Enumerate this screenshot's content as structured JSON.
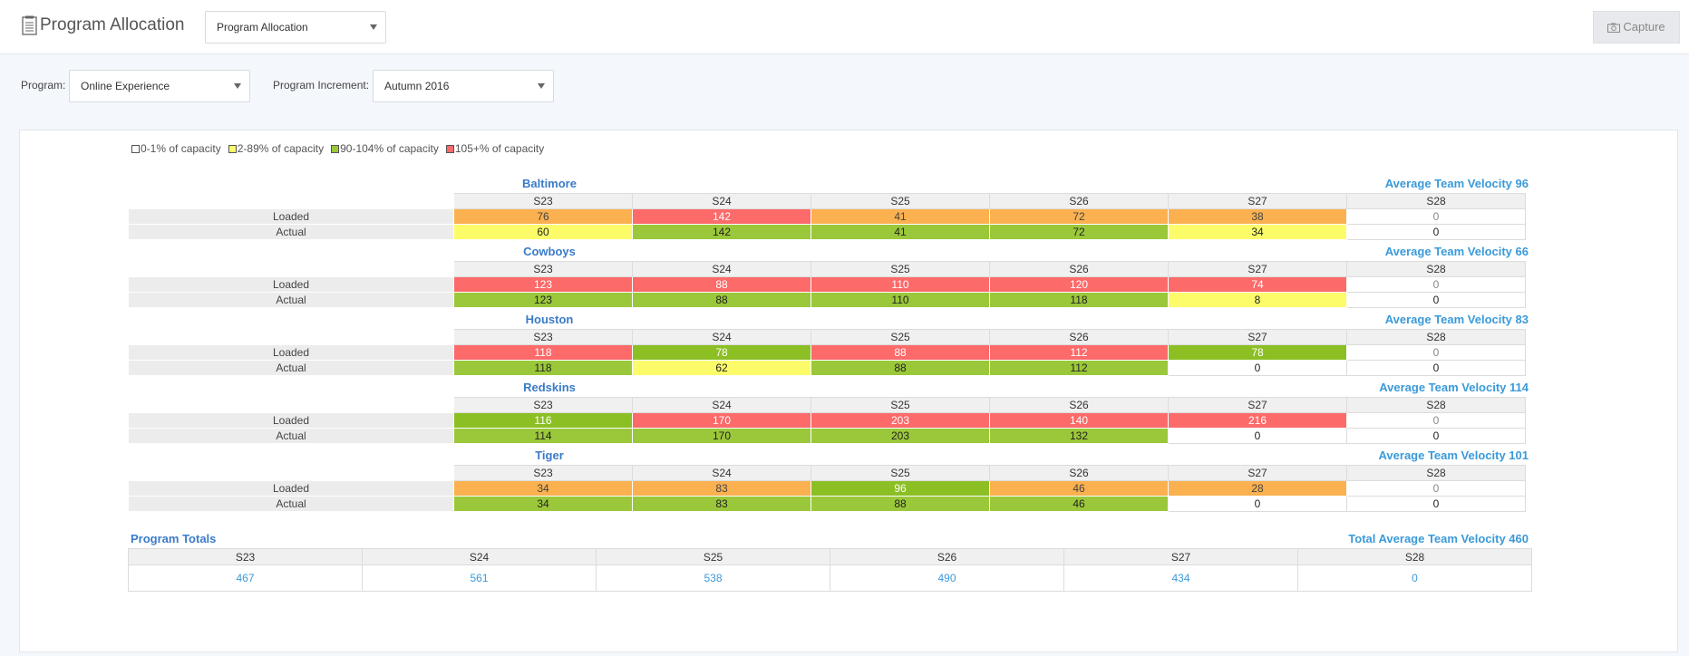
{
  "header": {
    "title": "Program Allocation",
    "view_select": "Program Allocation",
    "capture_label": "Capture"
  },
  "filters": {
    "program_label": "Program:",
    "program_value": "Online Experience",
    "increment_label": "Program Increment:",
    "increment_value": "Autumn 2016"
  },
  "legend": [
    {
      "label": "0-1% of capacity",
      "color": "#ffffff"
    },
    {
      "label": "2-89% of capacity",
      "color": "#fcfc6a"
    },
    {
      "label": "90-104% of capacity",
      "color": "#9bc83a"
    },
    {
      "label": "105+% of capacity",
      "color": "#fc6a6a"
    }
  ],
  "sprints": [
    "S23",
    "S24",
    "S25",
    "S26",
    "S27",
    "S28"
  ],
  "row_labels": {
    "loaded": "Loaded",
    "actual": "Actual"
  },
  "teams": [
    {
      "name": "Baltimore",
      "velocity": "Average Team Velocity 96",
      "loaded": [
        "76",
        "142",
        "41",
        "72",
        "38",
        "0"
      ],
      "loaded_status": [
        "orange",
        "red",
        "orange",
        "orange",
        "orange",
        "white"
      ],
      "actual": [
        "60",
        "142",
        "41",
        "72",
        "34",
        "0"
      ],
      "actual_status": [
        "yellow",
        "green",
        "green",
        "green",
        "yellow",
        "white-b"
      ]
    },
    {
      "name": "Cowboys",
      "velocity": "Average Team Velocity 66",
      "loaded": [
        "123",
        "88",
        "110",
        "120",
        "74",
        "0"
      ],
      "loaded_status": [
        "red",
        "red",
        "red",
        "red",
        "red",
        "white"
      ],
      "actual": [
        "123",
        "88",
        "110",
        "118",
        "8",
        "0"
      ],
      "actual_status": [
        "green",
        "green",
        "green",
        "green",
        "yellow",
        "white-b"
      ]
    },
    {
      "name": "Houston",
      "velocity": "Average Team Velocity 83",
      "loaded": [
        "118",
        "78",
        "88",
        "112",
        "78",
        "0"
      ],
      "loaded_status": [
        "red",
        "dgreen",
        "red",
        "red",
        "dgreen",
        "white"
      ],
      "actual": [
        "118",
        "62",
        "88",
        "112",
        "0",
        "0"
      ],
      "actual_status": [
        "green",
        "yellow",
        "green",
        "green",
        "white-b",
        "white-b"
      ]
    },
    {
      "name": "Redskins",
      "velocity": "Average Team Velocity 114",
      "loaded": [
        "116",
        "170",
        "203",
        "140",
        "216",
        "0"
      ],
      "loaded_status": [
        "dgreen",
        "red",
        "red",
        "red",
        "red",
        "white"
      ],
      "actual": [
        "114",
        "170",
        "203",
        "132",
        "0",
        "0"
      ],
      "actual_status": [
        "green",
        "green",
        "green",
        "green",
        "white-b",
        "white-b"
      ]
    },
    {
      "name": "Tiger",
      "velocity": "Average Team Velocity 101",
      "loaded": [
        "34",
        "83",
        "96",
        "46",
        "28",
        "0"
      ],
      "loaded_status": [
        "orange",
        "orange",
        "dgreen",
        "orange",
        "orange",
        "white"
      ],
      "actual": [
        "34",
        "83",
        "88",
        "46",
        "0",
        "0"
      ],
      "actual_status": [
        "green",
        "green",
        "green",
        "green",
        "white-b",
        "white-b"
      ]
    }
  ],
  "totals": {
    "title": "Program Totals",
    "velocity": "Total Average Team Velocity 460",
    "values": [
      "467",
      "561",
      "538",
      "490",
      "434",
      "0"
    ]
  }
}
